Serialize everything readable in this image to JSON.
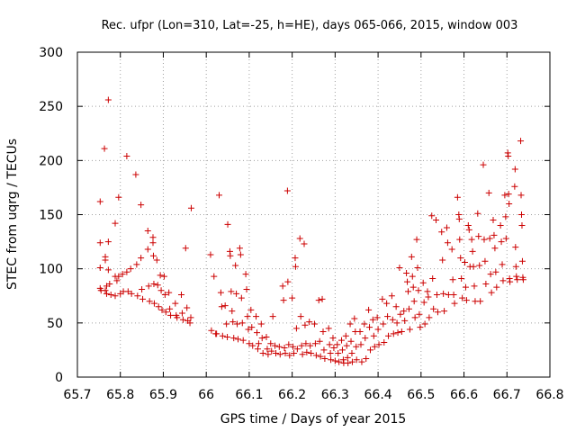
{
  "chart_data": {
    "type": "scatter",
    "title": "Rec. ufpr (Lon=310, Lat=-25, h=HE), days 065-066, 2015, window 003",
    "xlabel": "GPS time / Days of year 2015",
    "ylabel": "STEC from uqrg / TECUs",
    "xlim": [
      65.7,
      66.8
    ],
    "ylim": [
      0,
      300
    ],
    "x_ticks": [
      65.7,
      65.8,
      65.9,
      66.0,
      66.1,
      66.2,
      66.3,
      66.4,
      66.5,
      66.6,
      66.7,
      66.8
    ],
    "x_tick_labels": [
      "65.7",
      "65.8",
      "65.9",
      "66",
      "66.1",
      "66.2",
      "66.3",
      "66.4",
      "66.5",
      "66.6",
      "66.7",
      "66.8"
    ],
    "y_ticks": [
      0,
      50,
      100,
      150,
      200,
      250,
      300
    ],
    "y_tick_labels": [
      "0",
      "50",
      "100",
      "150",
      "200",
      "250",
      "300"
    ],
    "grid": true,
    "marker": "+",
    "color": "#cc0000",
    "series": [
      {
        "points": [
          [
            65.753,
            162
          ],
          [
            65.753,
            124
          ],
          [
            65.753,
            101
          ],
          [
            65.753,
            82
          ],
          [
            65.755,
            80
          ],
          [
            65.763,
            211
          ],
          [
            65.765,
            111
          ],
          [
            65.765,
            108
          ],
          [
            65.765,
            80
          ],
          [
            65.768,
            84
          ],
          [
            65.768,
            77
          ],
          [
            65.772,
            256
          ],
          [
            65.772,
            125
          ],
          [
            65.772,
            99
          ],
          [
            65.775,
            86
          ],
          [
            65.778,
            76
          ],
          [
            65.788,
            142
          ],
          [
            65.788,
            93
          ],
          [
            65.788,
            75
          ],
          [
            65.792,
            89
          ],
          [
            65.796,
            166
          ],
          [
            65.796,
            93
          ],
          [
            65.8,
            77
          ],
          [
            65.805,
            95
          ],
          [
            65.807,
            79
          ],
          [
            65.815,
            204
          ],
          [
            65.815,
            97
          ],
          [
            65.818,
            79
          ],
          [
            65.824,
            100
          ],
          [
            65.826,
            77
          ],
          [
            65.836,
            187
          ],
          [
            65.838,
            104
          ],
          [
            65.84,
            75
          ],
          [
            65.848,
            159
          ],
          [
            65.848,
            110
          ],
          [
            65.85,
            81
          ],
          [
            65.852,
            72
          ],
          [
            65.864,
            135
          ],
          [
            65.864,
            118
          ],
          [
            65.866,
            84
          ],
          [
            65.868,
            70
          ],
          [
            65.876,
            129
          ],
          [
            65.876,
            124
          ],
          [
            65.877,
            112
          ],
          [
            65.878,
            86
          ],
          [
            65.879,
            68
          ],
          [
            65.885,
            108
          ],
          [
            65.887,
            85
          ],
          [
            65.889,
            65
          ],
          [
            65.893,
            94
          ],
          [
            65.895,
            80
          ],
          [
            65.897,
            62
          ],
          [
            65.902,
            93
          ],
          [
            65.904,
            76
          ],
          [
            65.906,
            60
          ],
          [
            65.913,
            78
          ],
          [
            65.915,
            63
          ],
          [
            65.917,
            57
          ],
          [
            65.928,
            68
          ],
          [
            65.93,
            57
          ],
          [
            65.932,
            55
          ],
          [
            65.942,
            76
          ],
          [
            65.944,
            59
          ],
          [
            65.946,
            53
          ],
          [
            65.952,
            119
          ],
          [
            65.955,
            64
          ],
          [
            65.957,
            52
          ],
          [
            65.962,
            50
          ],
          [
            65.964,
            55
          ],
          [
            65.965,
            156
          ],
          [
            66.01,
            113
          ],
          [
            66.012,
            43
          ],
          [
            66.018,
            93
          ],
          [
            66.022,
            40
          ],
          [
            66.024,
            40
          ],
          [
            66.03,
            168
          ],
          [
            66.034,
            78
          ],
          [
            66.036,
            65
          ],
          [
            66.038,
            38
          ],
          [
            66.044,
            66
          ],
          [
            66.047,
            49
          ],
          [
            66.049,
            37
          ],
          [
            66.05,
            141
          ],
          [
            66.055,
            116
          ],
          [
            66.056,
            112
          ],
          [
            66.058,
            79
          ],
          [
            66.06,
            61
          ],
          [
            66.062,
            51
          ],
          [
            66.064,
            36
          ],
          [
            66.068,
            103
          ],
          [
            66.07,
            77
          ],
          [
            66.072,
            49
          ],
          [
            66.074,
            35
          ],
          [
            66.078,
            119
          ],
          [
            66.08,
            113
          ],
          [
            66.082,
            73
          ],
          [
            66.084,
            50
          ],
          [
            66.086,
            34
          ],
          [
            66.092,
            95
          ],
          [
            66.094,
            81
          ],
          [
            66.096,
            56
          ],
          [
            66.098,
            44
          ],
          [
            66.1,
            31
          ],
          [
            66.104,
            62
          ],
          [
            66.106,
            46
          ],
          [
            66.108,
            29
          ],
          [
            66.116,
            56
          ],
          [
            66.118,
            41
          ],
          [
            66.12,
            26
          ],
          [
            66.122,
            31
          ],
          [
            66.128,
            49
          ],
          [
            66.13,
            36
          ],
          [
            66.132,
            22
          ],
          [
            66.14,
            37
          ],
          [
            66.142,
            26
          ],
          [
            66.144,
            21
          ],
          [
            66.15,
            31
          ],
          [
            66.152,
            24
          ],
          [
            66.155,
            56
          ],
          [
            66.16,
            29
          ],
          [
            66.162,
            22
          ],
          [
            66.17,
            28
          ],
          [
            66.172,
            21
          ],
          [
            66.178,
            84
          ],
          [
            66.18,
            71
          ],
          [
            66.182,
            27
          ],
          [
            66.184,
            22
          ],
          [
            66.189,
            172
          ],
          [
            66.19,
            88
          ],
          [
            66.192,
            30
          ],
          [
            66.194,
            20
          ],
          [
            66.2,
            73
          ],
          [
            66.202,
            28
          ],
          [
            66.204,
            22
          ],
          [
            66.207,
            110
          ],
          [
            66.208,
            102
          ],
          [
            66.21,
            45
          ],
          [
            66.212,
            26
          ],
          [
            66.218,
            128
          ],
          [
            66.22,
            56
          ],
          [
            66.222,
            29
          ],
          [
            66.224,
            21
          ],
          [
            66.228,
            123
          ],
          [
            66.23,
            48
          ],
          [
            66.232,
            31
          ],
          [
            66.234,
            23
          ],
          [
            66.24,
            51
          ],
          [
            66.242,
            29
          ],
          [
            66.244,
            22
          ],
          [
            66.252,
            49
          ],
          [
            66.254,
            31
          ],
          [
            66.256,
            20
          ],
          [
            66.262,
            71
          ],
          [
            66.264,
            33
          ],
          [
            66.266,
            19
          ],
          [
            66.27,
            72
          ],
          [
            66.272,
            42
          ],
          [
            66.274,
            25
          ],
          [
            66.276,
            17
          ],
          [
            66.285,
            45
          ],
          [
            66.287,
            30
          ],
          [
            66.289,
            22
          ],
          [
            66.29,
            16
          ],
          [
            66.295,
            36
          ],
          [
            66.297,
            27
          ],
          [
            66.3,
            15
          ],
          [
            66.305,
            30
          ],
          [
            66.307,
            22
          ],
          [
            66.309,
            14
          ],
          [
            66.315,
            34
          ],
          [
            66.317,
            25
          ],
          [
            66.319,
            16
          ],
          [
            66.32,
            13
          ],
          [
            66.325,
            38
          ],
          [
            66.327,
            29
          ],
          [
            66.329,
            18
          ],
          [
            66.33,
            13
          ],
          [
            66.335,
            49
          ],
          [
            66.337,
            33
          ],
          [
            66.339,
            22
          ],
          [
            66.34,
            14
          ],
          [
            66.345,
            54
          ],
          [
            66.347,
            42
          ],
          [
            66.349,
            28
          ],
          [
            66.35,
            16
          ],
          [
            66.358,
            42
          ],
          [
            66.36,
            30
          ],
          [
            66.362,
            14
          ],
          [
            66.368,
            49
          ],
          [
            66.37,
            36
          ],
          [
            66.372,
            17
          ],
          [
            66.378,
            62
          ],
          [
            66.38,
            46
          ],
          [
            66.382,
            25
          ],
          [
            66.388,
            53
          ],
          [
            66.39,
            38
          ],
          [
            66.392,
            28
          ],
          [
            66.398,
            55
          ],
          [
            66.4,
            44
          ],
          [
            66.402,
            30
          ],
          [
            66.41,
            72
          ],
          [
            66.412,
            49
          ],
          [
            66.414,
            32
          ],
          [
            66.42,
            68
          ],
          [
            66.422,
            56
          ],
          [
            66.424,
            38
          ],
          [
            66.432,
            75
          ],
          [
            66.434,
            53
          ],
          [
            66.436,
            40
          ],
          [
            66.442,
            65
          ],
          [
            66.444,
            50
          ],
          [
            66.446,
            41
          ],
          [
            66.45,
            101
          ],
          [
            66.452,
            58
          ],
          [
            66.455,
            42
          ],
          [
            66.46,
            61
          ],
          [
            66.462,
            52
          ],
          [
            66.466,
            96
          ],
          [
            66.468,
            88
          ],
          [
            66.47,
            79
          ],
          [
            66.472,
            63
          ],
          [
            66.474,
            44
          ],
          [
            66.478,
            111
          ],
          [
            66.48,
            93
          ],
          [
            66.482,
            83
          ],
          [
            66.484,
            70
          ],
          [
            66.486,
            55
          ],
          [
            66.49,
            127
          ],
          [
            66.492,
            101
          ],
          [
            66.494,
            80
          ],
          [
            66.496,
            58
          ],
          [
            66.498,
            46
          ],
          [
            66.505,
            87
          ],
          [
            66.507,
            69
          ],
          [
            66.509,
            49
          ],
          [
            66.515,
            79
          ],
          [
            66.517,
            74
          ],
          [
            66.519,
            55
          ],
          [
            66.525,
            149
          ],
          [
            66.527,
            91
          ],
          [
            66.529,
            63
          ],
          [
            66.535,
            145
          ],
          [
            66.537,
            76
          ],
          [
            66.539,
            60
          ],
          [
            66.548,
            134
          ],
          [
            66.55,
            108
          ],
          [
            66.552,
            77
          ],
          [
            66.554,
            61
          ],
          [
            66.56,
            138
          ],
          [
            66.562,
            124
          ],
          [
            66.564,
            76
          ],
          [
            66.572,
            118
          ],
          [
            66.574,
            90
          ],
          [
            66.576,
            76
          ],
          [
            66.578,
            68
          ],
          [
            66.585,
            166
          ],
          [
            66.588,
            150
          ],
          [
            66.589,
            146
          ],
          [
            66.59,
            127
          ],
          [
            66.592,
            110
          ],
          [
            66.594,
            91
          ],
          [
            66.596,
            73
          ],
          [
            66.602,
            106
          ],
          [
            66.604,
            83
          ],
          [
            66.606,
            71
          ],
          [
            66.61,
            140
          ],
          [
            66.612,
            136
          ],
          [
            66.614,
            102
          ],
          [
            66.618,
            127
          ],
          [
            66.62,
            116
          ],
          [
            66.622,
            102
          ],
          [
            66.624,
            84
          ],
          [
            66.626,
            70
          ],
          [
            66.632,
            151
          ],
          [
            66.634,
            130
          ],
          [
            66.636,
            103
          ],
          [
            66.638,
            70
          ],
          [
            66.645,
            196
          ],
          [
            66.647,
            127
          ],
          [
            66.649,
            107
          ],
          [
            66.651,
            86
          ],
          [
            66.658,
            170
          ],
          [
            66.66,
            128
          ],
          [
            66.662,
            95
          ],
          [
            66.664,
            78
          ],
          [
            66.668,
            145
          ],
          [
            66.67,
            131
          ],
          [
            66.672,
            119
          ],
          [
            66.674,
            97
          ],
          [
            66.676,
            83
          ],
          [
            66.685,
            140
          ],
          [
            66.687,
            125
          ],
          [
            66.689,
            104
          ],
          [
            66.691,
            89
          ],
          [
            66.695,
            168
          ],
          [
            66.697,
            148
          ],
          [
            66.698,
            128
          ],
          [
            66.702,
            207
          ],
          [
            66.703,
            204
          ],
          [
            66.704,
            169
          ],
          [
            66.705,
            160
          ],
          [
            66.706,
            91
          ],
          [
            66.707,
            88
          ],
          [
            66.718,
            176
          ],
          [
            66.719,
            192
          ],
          [
            66.72,
            120
          ],
          [
            66.721,
            102
          ],
          [
            66.722,
            93
          ],
          [
            66.724,
            90
          ],
          [
            66.732,
            218
          ],
          [
            66.733,
            168
          ],
          [
            66.734,
            150
          ],
          [
            66.735,
            140
          ],
          [
            66.736,
            107
          ],
          [
            66.737,
            92
          ],
          [
            66.738,
            90
          ]
        ]
      }
    ]
  }
}
